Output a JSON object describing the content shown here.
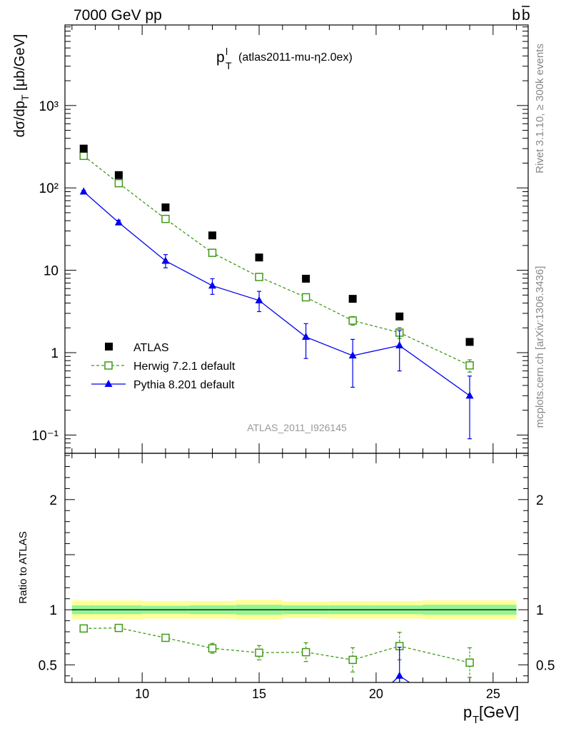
{
  "header": {
    "left": "7000 GeV pp",
    "right_main": "b",
    "right_bar": "b"
  },
  "main_plot": {
    "title_main": "p",
    "title_sup": "l",
    "title_sub": "T",
    "title_note": "(atlas2011-mu-η2.0ex)",
    "ylabel_parts": {
      "pre": "dσ/dp",
      "sub": "T",
      "post": " [μb/GeV]"
    },
    "analysis_id": "ATLAS_2011_I926145"
  },
  "side_text": {
    "top": "Rivet 3.1.10, ≥ 300k events",
    "bottom": "mcplots.cern.ch [arXiv:1306.3436]"
  },
  "ratio_plot": {
    "ylabel": "Ratio to ATLAS"
  },
  "x_axis": {
    "label_main": "p",
    "label_sub": "T",
    "label_post": " [GeV]"
  },
  "legend": {
    "atlas": "ATLAS",
    "herwig": "Herwig 7.2.1 default",
    "pythia": "Pythia 8.201 default"
  },
  "colors": {
    "atlas": "#000000",
    "herwig": "#3f9a16",
    "pythia": "#0000ee",
    "band_inner": "#93f593",
    "band_outer": "#ffff99"
  },
  "chart_data": [
    {
      "type": "scatter",
      "title": "p_T^l (atlas2011-mu-η2.0ex)",
      "xlabel": "p_T [GeV]",
      "ylabel": "dσ/dp_T [μb/GeV]",
      "xlim": [
        6.7,
        26.5
      ],
      "ylim": [
        0.06,
        9500
      ],
      "yscale": "log",
      "x_ticks": [
        10,
        15,
        20,
        25
      ],
      "y_ticks": [
        {
          "v": 0.1,
          "label": "10⁻¹"
        },
        {
          "v": 1,
          "label": "1"
        },
        {
          "v": 10,
          "label": "10"
        },
        {
          "v": 100,
          "label": "10²"
        },
        {
          "v": 1000,
          "label": "10³"
        }
      ],
      "series": [
        {
          "name": "ATLAS",
          "style": "square",
          "x": [
            7.5,
            9,
            11,
            13,
            15,
            17,
            19,
            21,
            24
          ],
          "y": [
            300,
            143,
            58,
            26.5,
            14.3,
            7.9,
            4.5,
            2.75,
            1.35
          ]
        },
        {
          "name": "Herwig 7.2.1 default",
          "style": "open-square-dashed",
          "x": [
            7.5,
            9,
            11,
            13,
            15,
            17,
            19,
            21,
            24
          ],
          "y": [
            245,
            114,
            42,
            16.3,
            8.3,
            4.7,
            2.45,
            1.75,
            0.7
          ],
          "err": [
            0.04,
            0.03,
            0.03,
            0.04,
            0.05,
            0.06,
            0.12,
            0.15,
            0.17
          ]
        },
        {
          "name": "Pythia 8.201 default",
          "style": "triangle-solid",
          "x": [
            7.5,
            9,
            11,
            13,
            15,
            17,
            19,
            21,
            24
          ],
          "y": [
            90,
            38,
            13,
            6.5,
            4.3,
            1.55,
            0.92,
            1.22,
            0.3
          ],
          "err_lo": [
            2,
            2,
            2.3,
            1.4,
            1.15,
            0.7,
            0.54,
            0.62,
            0.21
          ],
          "err_hi": [
            3,
            2.5,
            2.5,
            1.4,
            1.25,
            0.7,
            0.53,
            0.63,
            0.22
          ]
        }
      ]
    },
    {
      "type": "scatter",
      "ylabel": "Ratio to ATLAS",
      "xlim": [
        6.7,
        26.5
      ],
      "ylim": [
        0.34,
        2.42
      ],
      "y_ticks": [
        {
          "v": 0.5,
          "label": "0.5"
        },
        {
          "v": 1,
          "label": "1"
        },
        {
          "v": 2,
          "label": "2"
        }
      ],
      "bands": {
        "edges": [
          7,
          8,
          10,
          12,
          14,
          16,
          18,
          20,
          22,
          26
        ],
        "inner": [
          0.04,
          0.04,
          0.036,
          0.04,
          0.045,
          0.04,
          0.04,
          0.04,
          0.045
        ],
        "outer": [
          0.085,
          0.085,
          0.08,
          0.08,
          0.09,
          0.075,
          0.08,
          0.08,
          0.085
        ]
      },
      "series": [
        {
          "name": "Herwig 7.2.1 default",
          "x": [
            7.5,
            9,
            11,
            13,
            15,
            17,
            19,
            21,
            24
          ],
          "y": [
            0.83,
            0.835,
            0.745,
            0.65,
            0.61,
            0.615,
            0.545,
            0.67,
            0.52
          ],
          "err": [
            0.015,
            0.015,
            0.025,
            0.045,
            0.065,
            0.085,
            0.11,
            0.125,
            0.135
          ]
        },
        {
          "name": "Pythia 8.201 default",
          "x": [
            21
          ],
          "y": [
            0.4
          ],
          "err_hi": [
            0.26
          ]
        }
      ]
    }
  ]
}
